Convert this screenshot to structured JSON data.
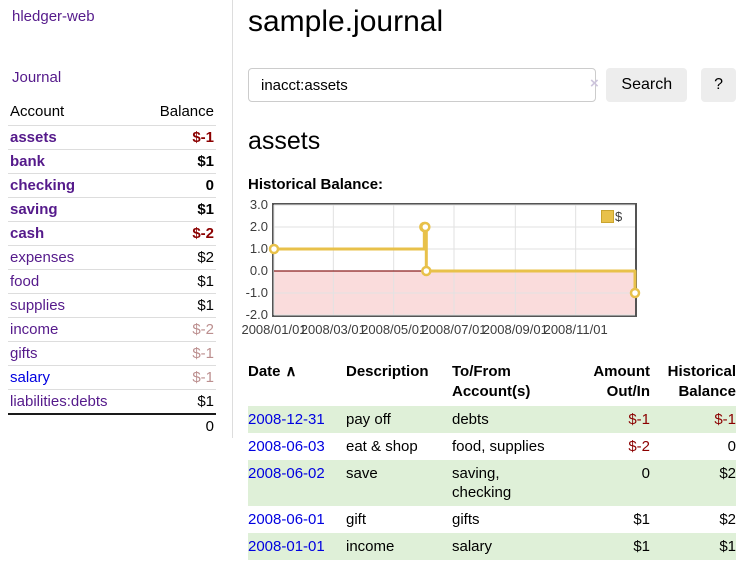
{
  "app_title": "hledger-web",
  "sidebar": {
    "journal_link": "Journal",
    "account_header": "Account",
    "balance_header": "Balance",
    "accounts": [
      {
        "name": "assets",
        "balance": "$-1",
        "indent": 1,
        "bold": true,
        "neg": "strong",
        "link": "purple"
      },
      {
        "name": "bank",
        "balance": "$1",
        "indent": 2,
        "bold": true,
        "neg": "none",
        "link": "purple"
      },
      {
        "name": "checking",
        "balance": "0",
        "indent": 3,
        "bold": true,
        "neg": "none",
        "link": "purple"
      },
      {
        "name": "saving",
        "balance": "$1",
        "indent": 3,
        "bold": true,
        "neg": "none",
        "link": "purple"
      },
      {
        "name": "cash",
        "balance": "$-2",
        "indent": 2,
        "bold": true,
        "neg": "strong",
        "link": "purple"
      },
      {
        "name": "expenses",
        "balance": "$2",
        "indent": 1,
        "bold": false,
        "neg": "none",
        "link": "purple"
      },
      {
        "name": "food",
        "balance": "$1",
        "indent": 2,
        "bold": false,
        "neg": "none",
        "link": "purple"
      },
      {
        "name": "supplies",
        "balance": "$1",
        "indent": 2,
        "bold": false,
        "neg": "none",
        "link": "purple"
      },
      {
        "name": "income",
        "balance": "$-2",
        "indent": 1,
        "bold": false,
        "neg": "muted",
        "link": "purple"
      },
      {
        "name": "gifts",
        "balance": "$-1",
        "indent": 2,
        "bold": false,
        "neg": "muted",
        "link": "purple"
      },
      {
        "name": "salary",
        "balance": "$-1",
        "indent": 2,
        "bold": false,
        "neg": "muted",
        "link": "blue"
      },
      {
        "name": "liabilities:debts",
        "balance": "$1",
        "indent": 1,
        "bold": false,
        "neg": "none",
        "link": "purple"
      }
    ],
    "total": "0"
  },
  "main": {
    "title": "sample.journal",
    "search": {
      "value": "inacct:assets",
      "clear_icon": "×",
      "search_button": "Search",
      "help_button": "?"
    },
    "account_title": "assets",
    "chart_heading": "Historical Balance:"
  },
  "chart_data": {
    "type": "line",
    "title": "Historical Balance:",
    "step": "after",
    "series": [
      {
        "name": "$",
        "color": "#e8c14a",
        "points": [
          {
            "date": "2008-01-01",
            "day": 0,
            "value": 1
          },
          {
            "date": "2008-06-01",
            "day": 152,
            "value": 2
          },
          {
            "date": "2008-06-02",
            "day": 153,
            "value": 2
          },
          {
            "date": "2008-06-03",
            "day": 154,
            "value": 0
          },
          {
            "date": "2008-12-31",
            "day": 365,
            "value": -1
          }
        ]
      }
    ],
    "x_ticks": [
      {
        "day": 0,
        "label": "2008/01/01"
      },
      {
        "day": 60,
        "label": "2008/03/01"
      },
      {
        "day": 121,
        "label": "2008/05/01"
      },
      {
        "day": 182,
        "label": "2008/07/01"
      },
      {
        "day": 244,
        "label": "2008/09/01"
      },
      {
        "day": 305,
        "label": "2008/11/01"
      }
    ],
    "y_ticks": [
      3.0,
      2.0,
      1.0,
      0.0,
      -1.0,
      -2.0
    ],
    "xlim_days": [
      0,
      365
    ],
    "ylim": [
      -2,
      3
    ],
    "grid": true,
    "negative_region_fill": "#fadcdc",
    "zero_line_color": "#8b2020",
    "legend": {
      "label": "$",
      "position": "top-right"
    }
  },
  "register": {
    "headers": {
      "date": "Date",
      "sort_icon": "∧",
      "description": "Description",
      "tofrom": "To/From Account(s)",
      "amount": "Amount Out/In",
      "balance": "Historical Balance"
    },
    "rows": [
      {
        "date": "2008-12-31",
        "description": "pay off",
        "accounts": "debts",
        "amount": "$-1",
        "amount_neg": true,
        "balance": "$-1",
        "balance_neg": true
      },
      {
        "date": "2008-06-03",
        "description": "eat & shop",
        "accounts": "food, supplies",
        "amount": "$-2",
        "amount_neg": true,
        "balance": "0",
        "balance_neg": false
      },
      {
        "date": "2008-06-02",
        "description": "save",
        "accounts": "saving, checking",
        "amount": "0",
        "amount_neg": false,
        "balance": "$2",
        "balance_neg": false
      },
      {
        "date": "2008-06-01",
        "description": "gift",
        "accounts": "gifts",
        "amount": "$1",
        "amount_neg": false,
        "balance": "$2",
        "balance_neg": false
      },
      {
        "date": "2008-01-01",
        "description": "income",
        "accounts": "salary",
        "amount": "$1",
        "amount_neg": false,
        "balance": "$1",
        "balance_neg": false
      }
    ]
  },
  "colors": {
    "link_purple": "#551a8b",
    "link_blue": "#0000e0",
    "negative": "#8b0000",
    "muted_negative": "#bc8f8f",
    "row_stripe_green": "#dff0d8",
    "chart_gold": "#e8c14a",
    "chart_negative_fill": "#fadcdc",
    "chart_zero_line": "#8b2020"
  }
}
